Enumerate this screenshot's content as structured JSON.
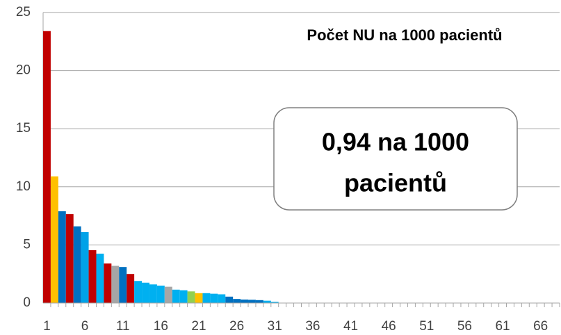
{
  "chart_data": {
    "type": "bar",
    "title": "Počet NU na 1000 pacientů",
    "annotation": [
      "0,94 na 1000",
      "pacientů"
    ],
    "categories": [
      "1",
      null,
      null,
      null,
      null,
      "6",
      null,
      null,
      null,
      null,
      "11",
      null,
      null,
      null,
      null,
      "16",
      null,
      null,
      null,
      null,
      "21",
      null,
      null,
      null,
      null,
      "26",
      null,
      null,
      null,
      null,
      "31",
      null,
      null,
      null,
      null,
      "36",
      null,
      null,
      null,
      null,
      "41",
      null,
      null,
      null,
      null,
      "46",
      null,
      null,
      null,
      null,
      "51",
      null,
      null,
      null,
      null,
      "56",
      null,
      null,
      null,
      null,
      "61",
      null,
      null,
      null,
      null,
      "66",
      null,
      null
    ],
    "values": [
      23.4,
      10.9,
      7.9,
      7.65,
      6.6,
      6.1,
      4.55,
      4.25,
      3.4,
      3.2,
      3.1,
      2.5,
      1.9,
      1.75,
      1.6,
      1.5,
      1.4,
      1.15,
      1.1,
      1.0,
      0.85,
      0.85,
      0.8,
      0.75,
      0.55,
      0.35,
      0.3,
      0.28,
      0.25,
      0.2,
      0.1,
      0,
      0,
      0,
      0,
      0,
      0,
      0,
      0,
      0,
      0,
      0,
      0,
      0,
      0,
      0,
      0,
      0,
      0,
      0,
      0,
      0,
      0,
      0,
      0,
      0,
      0,
      0,
      0,
      0,
      0,
      0,
      0,
      0,
      0,
      0,
      0,
      0
    ],
    "colors": [
      "#c00000",
      "#ffc000",
      "#0070c0",
      "#c00000",
      "#0070c0",
      "#00a2e8",
      "#c00000",
      "#00b0f0",
      "#c00000",
      "#a6a6a6",
      "#0070c0",
      "#c00000",
      "#00b0f0",
      "#00b0f0",
      "#00b0f0",
      "#00b0f0",
      "#a6a6a6",
      "#00b0f0",
      "#00b0f0",
      "#92d050",
      "#ffc000",
      "#00b0f0",
      "#00b0f0",
      "#00b0f0",
      "#0070c0",
      "#0070c0",
      "#0070c0",
      "#0070c0",
      "#0070c0",
      "#00b0f0",
      "#00b0f0",
      "#00b0f0",
      "#00b0f0",
      "#00b0f0",
      "#00b0f0",
      "#00b0f0",
      "#00b0f0",
      "#00b0f0",
      "#00b0f0",
      "#00b0f0",
      "#00b0f0",
      "#00b0f0",
      "#00b0f0",
      "#00b0f0",
      "#00b0f0",
      "#00b0f0",
      "#00b0f0",
      "#00b0f0",
      "#00b0f0",
      "#00b0f0",
      "#00b0f0",
      "#00b0f0",
      "#00b0f0",
      "#00b0f0",
      "#00b0f0",
      "#00b0f0",
      "#00b0f0",
      "#00b0f0",
      "#00b0f0",
      "#00b0f0",
      "#00b0f0",
      "#00b0f0",
      "#00b0f0",
      "#00b0f0",
      "#00b0f0",
      "#00b0f0",
      "#00b0f0",
      "#00b0f0"
    ],
    "ylim": [
      0,
      25
    ],
    "yticks": [
      0,
      5,
      10,
      15,
      20,
      25
    ],
    "grid": true
  }
}
